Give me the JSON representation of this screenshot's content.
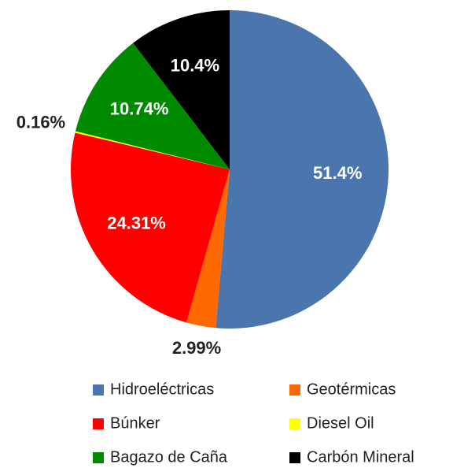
{
  "chart_data": {
    "type": "pie",
    "categories": [
      "Hidroeléctricas",
      "Geotérmicas",
      "Búnker",
      "Diesel Oil",
      "Bagazo de Caña",
      "Carbón Mineral"
    ],
    "values": [
      51.4,
      2.99,
      24.31,
      0.16,
      10.74,
      10.4
    ],
    "value_labels": [
      "51.4%",
      "2.99%",
      "24.31%",
      "0.16%",
      "10.74%",
      "10.4%"
    ],
    "colors": [
      "#4a76ad",
      "#ff6a00",
      "#ff0000",
      "#ffff00",
      "#008a00",
      "#000000"
    ],
    "legend": "bottom"
  }
}
